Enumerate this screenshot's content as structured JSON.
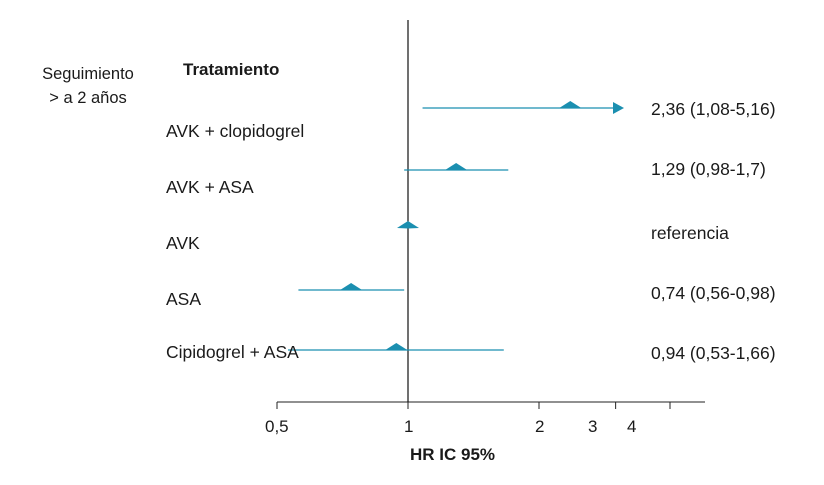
{
  "chart_data": {
    "type": "forest",
    "xscale": "log",
    "xlim": [
      0.5,
      4.8
    ],
    "xticks": [
      0.5,
      1,
      2,
      3,
      4
    ],
    "xtick_labels": [
      "0,5",
      "1",
      "2",
      "3",
      "4"
    ],
    "reference_line": 1,
    "xlabel": "HR IC 95%",
    "row_group_label": "Seguimiento\n> a 2 años",
    "column_header": "Tratamiento",
    "color": "#1b8fb0",
    "rows": [
      {
        "label": "AVK + clopidogrel",
        "hr": 2.36,
        "lo": 1.08,
        "hi": 5.16,
        "text": "2,36 (1,08-5,16)",
        "hi_truncated": true
      },
      {
        "label": "AVK + ASA",
        "hr": 1.29,
        "lo": 0.98,
        "hi": 1.7,
        "text": "1,29 (0,98-1,7)"
      },
      {
        "label": "AVK",
        "hr": 1,
        "lo": 1,
        "hi": 1,
        "text": "referencia"
      },
      {
        "label": "ASA",
        "hr": 0.74,
        "lo": 0.56,
        "hi": 0.98,
        "text": "0,74 (0,56-0,98)"
      },
      {
        "label": "Cipidogrel + ASA",
        "hr": 0.94,
        "lo": 0.53,
        "hi": 1.66,
        "text": "0,94 (0,53-1,66)"
      }
    ]
  }
}
